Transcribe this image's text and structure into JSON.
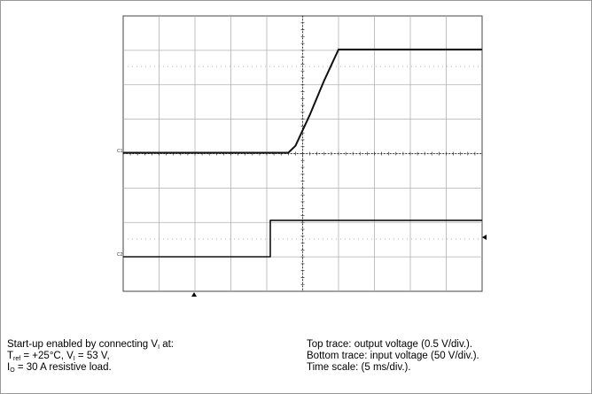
{
  "chart_data": {
    "type": "line",
    "x_range": [
      0,
      50
    ],
    "x_unit": "ms",
    "grid": true,
    "divisions": {
      "x": 10,
      "y": 8
    },
    "channel_labels": [
      "C1",
      "C2"
    ],
    "series": [
      {
        "name": "output voltage",
        "scale": "0.5 V/div.",
        "points": [
          [
            0,
            0
          ],
          [
            23,
            0
          ],
          [
            24,
            0.1
          ],
          [
            26,
            0.55
          ],
          [
            28,
            1.05
          ],
          [
            30,
            1.5
          ],
          [
            50,
            1.5
          ]
        ]
      },
      {
        "name": "input voltage",
        "scale": "50 V/div.",
        "points": [
          [
            0,
            0
          ],
          [
            20.5,
            0
          ],
          [
            20.5,
            53
          ],
          [
            50,
            53
          ]
        ]
      }
    ]
  },
  "caption": {
    "left": {
      "line1_text": "Start-up enabled by connecting V",
      "line1_sub": "I",
      "line1_end": " at:",
      "line2_a": "T",
      "line2_sub1": "ref",
      "line2_b": " = +25°C, V",
      "line2_sub2": "I",
      "line2_c": " = 53 V,",
      "line3_a": "I",
      "line3_sub": "O",
      "line3_b": " = 30 A resistive load."
    },
    "right": {
      "line1": "Top trace: output voltage (0.5 V/div.).",
      "line2": "Bottom trace: input voltage (50 V/div.).",
      "line3": "Time scale: (5 ms/div.)."
    }
  }
}
